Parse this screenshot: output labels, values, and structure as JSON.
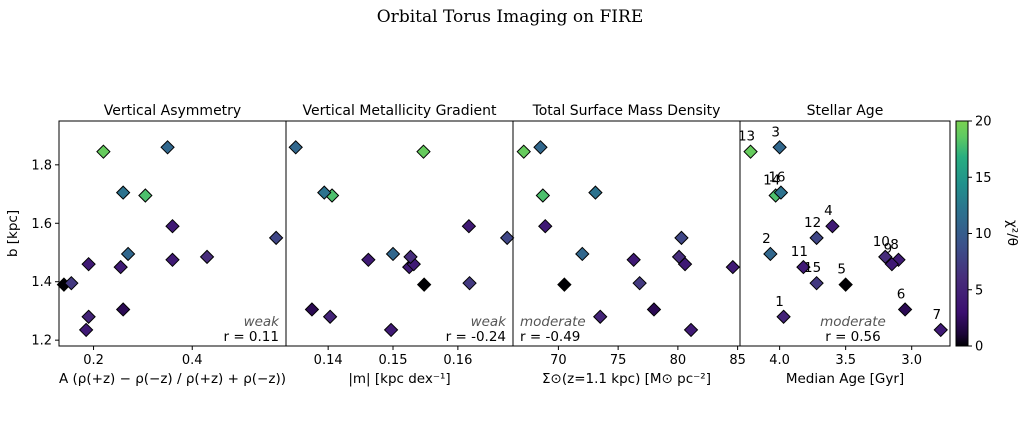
{
  "figure_title": "Orbital Torus Imaging on FIRE",
  "colorbar": {
    "label": "χ²/θ",
    "ticks": [
      0,
      5,
      10,
      15,
      20
    ],
    "range": [
      0,
      20
    ],
    "colormap": "viridis"
  },
  "bottom_caption_fragment": "(…)                                  (…)",
  "chart_data": [
    {
      "type": "scatter",
      "title": "Vertical Asymmetry",
      "xlabel": "A (ρ(+z) − ρ(−z) / ρ(+z) + ρ(−z))",
      "ylabel": "b [kpc]",
      "xlim": [
        0.13,
        0.59
      ],
      "ylim": [
        1.18,
        1.95
      ],
      "xticks": [
        0.2,
        0.4
      ],
      "xtick_labels": [
        "0.2",
        "0.4"
      ],
      "yticks": [
        1.2,
        1.4,
        1.6,
        1.8
      ],
      "ytick_labels": [
        "1.2",
        "1.4",
        "1.6",
        "1.8"
      ],
      "annotation": "weak",
      "r_text": "r = 0.11",
      "points": [
        {
          "id": 1,
          "x": 0.19,
          "y": 1.28,
          "c": 5
        },
        {
          "id": 2,
          "x": 0.57,
          "y": 1.55,
          "c": 8
        },
        {
          "id": 3,
          "x": 0.35,
          "y": 1.86,
          "c": 11
        },
        {
          "id": 4,
          "x": 0.36,
          "y": 1.59,
          "c": 4
        },
        {
          "id": 5,
          "x": 0.14,
          "y": 1.39,
          "c": 0
        },
        {
          "id": 6,
          "x": 0.26,
          "y": 1.305,
          "c": 2
        },
        {
          "id": 7,
          "x": 0.185,
          "y": 1.235,
          "c": 4
        },
        {
          "id": 8,
          "x": 0.19,
          "y": 1.46,
          "c": 4
        },
        {
          "id": 9,
          "x": 0.255,
          "y": 1.45,
          "c": 4
        },
        {
          "id": 10,
          "x": 0.43,
          "y": 1.485,
          "c": 6
        },
        {
          "id": 11,
          "x": 0.36,
          "y": 1.475,
          "c": 4
        },
        {
          "id": 12,
          "x": 0.27,
          "y": 1.495,
          "c": 11
        },
        {
          "id": 13,
          "x": 0.22,
          "y": 1.845,
          "c": 19
        },
        {
          "id": 14,
          "x": 0.305,
          "y": 1.695,
          "c": 18
        },
        {
          "id": 15,
          "x": 0.155,
          "y": 1.395,
          "c": 7
        },
        {
          "id": 16,
          "x": 0.26,
          "y": 1.705,
          "c": 12
        }
      ]
    },
    {
      "type": "scatter",
      "title": "Vertical Metallicity Gradient",
      "xlabel": "|m| [kpc dex⁻¹]",
      "ylabel": "",
      "xlim": [
        0.1335,
        0.1685
      ],
      "ylim": [
        1.18,
        1.95
      ],
      "xticks": [
        0.14,
        0.15,
        0.16
      ],
      "xtick_labels": [
        "0.14",
        "0.15",
        "0.16"
      ],
      "yticks": [],
      "ytick_labels": [],
      "annotation": "weak",
      "r_text": "r = -0.24",
      "points": [
        {
          "id": 1,
          "x": 0.1403,
          "y": 1.28,
          "c": 5
        },
        {
          "id": 2,
          "x": 0.1676,
          "y": 1.55,
          "c": 8
        },
        {
          "id": 3,
          "x": 0.135,
          "y": 1.86,
          "c": 11
        },
        {
          "id": 4,
          "x": 0.1617,
          "y": 1.59,
          "c": 4
        },
        {
          "id": 5,
          "x": 0.1548,
          "y": 1.39,
          "c": 0
        },
        {
          "id": 6,
          "x": 0.1375,
          "y": 1.305,
          "c": 2
        },
        {
          "id": 7,
          "x": 0.1497,
          "y": 1.235,
          "c": 4
        },
        {
          "id": 8,
          "x": 0.1462,
          "y": 1.475,
          "c": 4
        },
        {
          "id": 9,
          "x": 0.1525,
          "y": 1.45,
          "c": 4
        },
        {
          "id": 10,
          "x": 0.1532,
          "y": 1.46,
          "c": 4
        },
        {
          "id": 11,
          "x": 0.1527,
          "y": 1.485,
          "c": 6
        },
        {
          "id": 12,
          "x": 0.15,
          "y": 1.495,
          "c": 11
        },
        {
          "id": 13,
          "x": 0.1547,
          "y": 1.845,
          "c": 19
        },
        {
          "id": 14,
          "x": 0.1406,
          "y": 1.695,
          "c": 18
        },
        {
          "id": 15,
          "x": 0.1618,
          "y": 1.395,
          "c": 7
        },
        {
          "id": 16,
          "x": 0.1394,
          "y": 1.705,
          "c": 12
        }
      ]
    },
    {
      "type": "scatter",
      "title": "Total Surface Mass Density",
      "xlabel": "Σ⊙(z=1.1 kpc) [M⊙ pc⁻²]",
      "ylabel": "",
      "xlim": [
        66.2,
        85.2
      ],
      "ylim": [
        1.18,
        1.95
      ],
      "xticks": [
        70,
        75,
        80,
        85
      ],
      "xtick_labels": [
        "70",
        "75",
        "80",
        "85"
      ],
      "yticks": [],
      "ytick_labels": [],
      "annotation": "moderate",
      "r_text": "r = -0.49",
      "points": [
        {
          "id": 1,
          "x": 73.5,
          "y": 1.28,
          "c": 5
        },
        {
          "id": 2,
          "x": 80.3,
          "y": 1.55,
          "c": 8
        },
        {
          "id": 3,
          "x": 68.5,
          "y": 1.86,
          "c": 11
        },
        {
          "id": 4,
          "x": 68.9,
          "y": 1.59,
          "c": 4
        },
        {
          "id": 5,
          "x": 70.5,
          "y": 1.39,
          "c": 0
        },
        {
          "id": 6,
          "x": 78.0,
          "y": 1.305,
          "c": 2
        },
        {
          "id": 7,
          "x": 81.1,
          "y": 1.235,
          "c": 4
        },
        {
          "id": 8,
          "x": 76.3,
          "y": 1.475,
          "c": 4
        },
        {
          "id": 9,
          "x": 80.6,
          "y": 1.46,
          "c": 4
        },
        {
          "id": 10,
          "x": 84.6,
          "y": 1.45,
          "c": 4
        },
        {
          "id": 11,
          "x": 80.1,
          "y": 1.485,
          "c": 6
        },
        {
          "id": 12,
          "x": 72.0,
          "y": 1.495,
          "c": 11
        },
        {
          "id": 13,
          "x": 67.1,
          "y": 1.845,
          "c": 19
        },
        {
          "id": 14,
          "x": 68.7,
          "y": 1.695,
          "c": 18
        },
        {
          "id": 15,
          "x": 76.8,
          "y": 1.395,
          "c": 7
        },
        {
          "id": 16,
          "x": 73.1,
          "y": 1.705,
          "c": 12
        }
      ]
    },
    {
      "type": "scatter",
      "title": "Stellar Age",
      "xlabel": "Median Age [Gyr]",
      "ylabel": "",
      "x_inverted": true,
      "xlim": [
        2.71,
        4.3
      ],
      "ylim": [
        1.18,
        1.95
      ],
      "xticks": [
        3.0,
        3.5,
        4.0
      ],
      "xtick_labels": [
        "3.0",
        "3.5",
        "4.0"
      ],
      "yticks": [],
      "ytick_labels": [],
      "annotation": "moderate",
      "r_text": "r = 0.56",
      "points": [
        {
          "id": 1,
          "x": 3.97,
          "y": 1.28,
          "c": 5,
          "label": "1"
        },
        {
          "id": 2,
          "x": 4.07,
          "y": 1.495,
          "c": 11,
          "label": "2"
        },
        {
          "id": 3,
          "x": 4.0,
          "y": 1.86,
          "c": 11,
          "label": "3"
        },
        {
          "id": 4,
          "x": 3.6,
          "y": 1.59,
          "c": 4,
          "label": "4"
        },
        {
          "id": 5,
          "x": 3.5,
          "y": 1.39,
          "c": 0,
          "label": "5"
        },
        {
          "id": 6,
          "x": 3.05,
          "y": 1.305,
          "c": 2,
          "label": "6"
        },
        {
          "id": 7,
          "x": 2.78,
          "y": 1.235,
          "c": 4,
          "label": "7"
        },
        {
          "id": 8,
          "x": 3.1,
          "y": 1.475,
          "c": 4,
          "label": "8"
        },
        {
          "id": 9,
          "x": 3.15,
          "y": 1.46,
          "c": 4,
          "label": "9"
        },
        {
          "id": 10,
          "x": 3.2,
          "y": 1.485,
          "c": 6,
          "label": "10"
        },
        {
          "id": 11,
          "x": 3.82,
          "y": 1.45,
          "c": 4,
          "label": "11"
        },
        {
          "id": 12,
          "x": 3.72,
          "y": 1.55,
          "c": 8,
          "label": "12"
        },
        {
          "id": 13,
          "x": 4.22,
          "y": 1.845,
          "c": 19,
          "label": "13"
        },
        {
          "id": 14,
          "x": 4.03,
          "y": 1.695,
          "c": 18,
          "label": "14"
        },
        {
          "id": 15,
          "x": 3.72,
          "y": 1.395,
          "c": 7,
          "label": "15"
        },
        {
          "id": 16,
          "x": 3.99,
          "y": 1.705,
          "c": 12,
          "label": "16"
        }
      ]
    }
  ]
}
